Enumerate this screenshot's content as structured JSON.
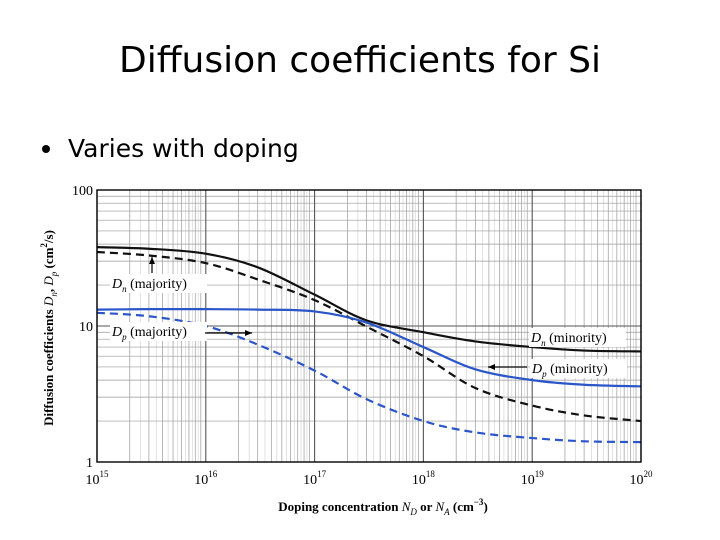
{
  "slide": {
    "title": "Diffusion coefficients for Si",
    "bullet": "Varies with doping"
  },
  "colors": {
    "black_curve": "#111111",
    "blue_curve": "#2b56c9",
    "grid": "#9a9a9a",
    "frame": "#000000"
  },
  "chart_data": {
    "type": "line",
    "title": "",
    "xlabel": "Doping concentration N_D or N_A (cm^-3)",
    "ylabel": "Diffusion coefficients D_n, D_p (cm^2/s)",
    "xscale": "log",
    "yscale": "log",
    "xlim": [
      1000000000000000.0,
      1e+20
    ],
    "ylim": [
      1,
      100
    ],
    "x_tick_exponents": [
      "15",
      "16",
      "17",
      "18",
      "19",
      "20"
    ],
    "y_tick_labels": [
      "100",
      "10",
      "1"
    ],
    "y_tick_values": [
      100,
      10,
      1
    ],
    "grid": true,
    "x": [
      1000000000000000.0,
      3000000000000000.0,
      1e+16,
      3e+16,
      1e+17,
      3e+17,
      1e+18,
      3e+18,
      1e+19,
      3e+19,
      1e+20
    ],
    "series": [
      {
        "name": "D_n (minority)",
        "color": "black",
        "dash": "solid",
        "values": [
          38,
          37,
          34,
          27,
          17,
          11,
          9.0,
          7.7,
          7.0,
          6.6,
          6.5
        ]
      },
      {
        "name": "D_n (majority)",
        "color": "black",
        "dash": "dashed",
        "values": [
          35,
          33,
          29,
          22,
          15.5,
          9.9,
          6.0,
          3.5,
          2.6,
          2.2,
          2.0
        ]
      },
      {
        "name": "D_p (minority)",
        "color": "blue",
        "dash": "solid",
        "values": [
          13.2,
          13.3,
          13.3,
          13.2,
          12.8,
          10.6,
          7.0,
          4.8,
          4.0,
          3.7,
          3.6
        ]
      },
      {
        "name": "D_p (majority)",
        "color": "blue",
        "dash": "dashed",
        "values": [
          12.5,
          11.8,
          10.0,
          7.3,
          4.7,
          2.9,
          2.0,
          1.65,
          1.5,
          1.42,
          1.4
        ]
      }
    ],
    "annotations": [
      {
        "target": "D_n (majority)",
        "letter": "D",
        "sub": "n",
        "suffix": " (majority)"
      },
      {
        "target": "D_p (majority)",
        "letter": "D",
        "sub": "p",
        "suffix": " (majority)"
      },
      {
        "target": "D_n (minority)",
        "letter": "D",
        "sub": "n",
        "suffix": " (minority)"
      },
      {
        "target": "D_p (minority)",
        "letter": "D",
        "sub": "p",
        "suffix": " (minority)"
      }
    ],
    "axis_text": {
      "ten": "10",
      "x_label_pre": "Doping concentration ",
      "x_N": "N",
      "x_D": "D",
      "x_or": " or ",
      "x_A": "A",
      "x_unit": " (cm",
      "x_exp": "−3",
      "x_close": ")",
      "y_label_pre": "Diffusion coefficients ",
      "y_D": "D",
      "y_n": "n",
      "y_sep": ", ",
      "y_p": "p",
      "y_unit": " (cm",
      "y_exp": "2",
      "y_close": "/s)"
    }
  }
}
